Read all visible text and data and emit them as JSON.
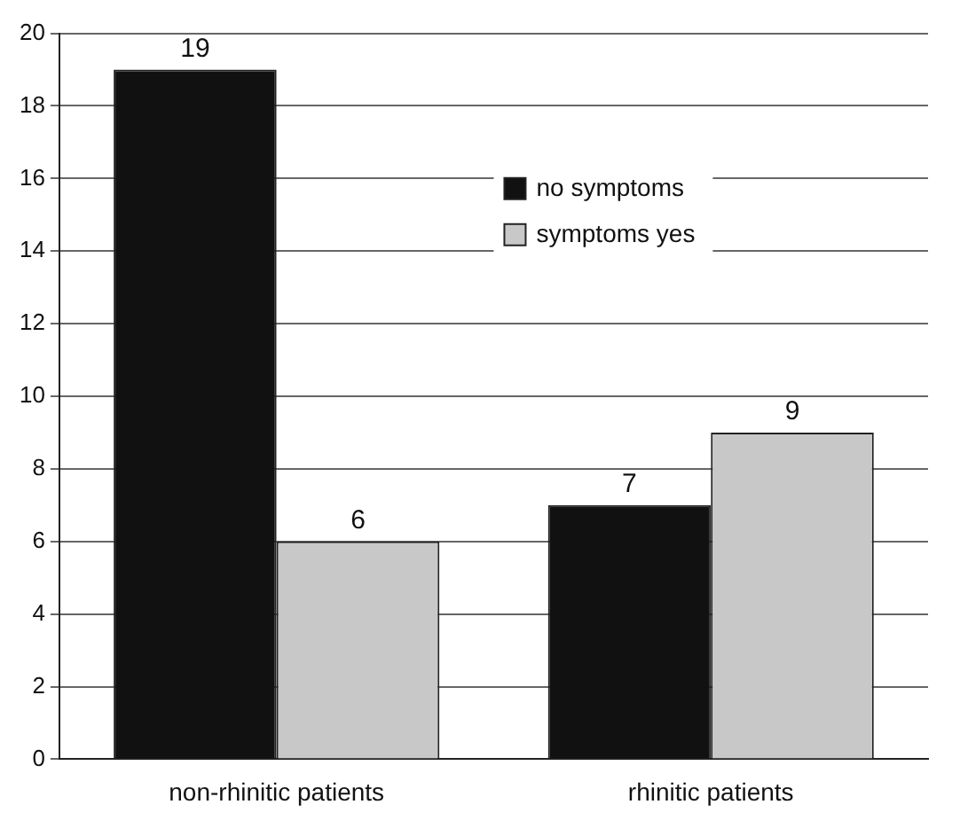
{
  "chart_data": {
    "type": "bar",
    "categories": [
      "non-rhinitic patients",
      "rhinitic patients"
    ],
    "series": [
      {
        "name": "no symptoms",
        "color": "#111111",
        "values": [
          19,
          7
        ]
      },
      {
        "name": "symptoms yes",
        "color": "#c8c8c8",
        "values": [
          6,
          9
        ]
      }
    ],
    "ylim": [
      0,
      20
    ],
    "yticks": [
      0,
      2,
      4,
      6,
      8,
      10,
      12,
      14,
      16,
      18,
      20
    ],
    "grid": "y",
    "legend": "top right",
    "data_labels": true
  }
}
